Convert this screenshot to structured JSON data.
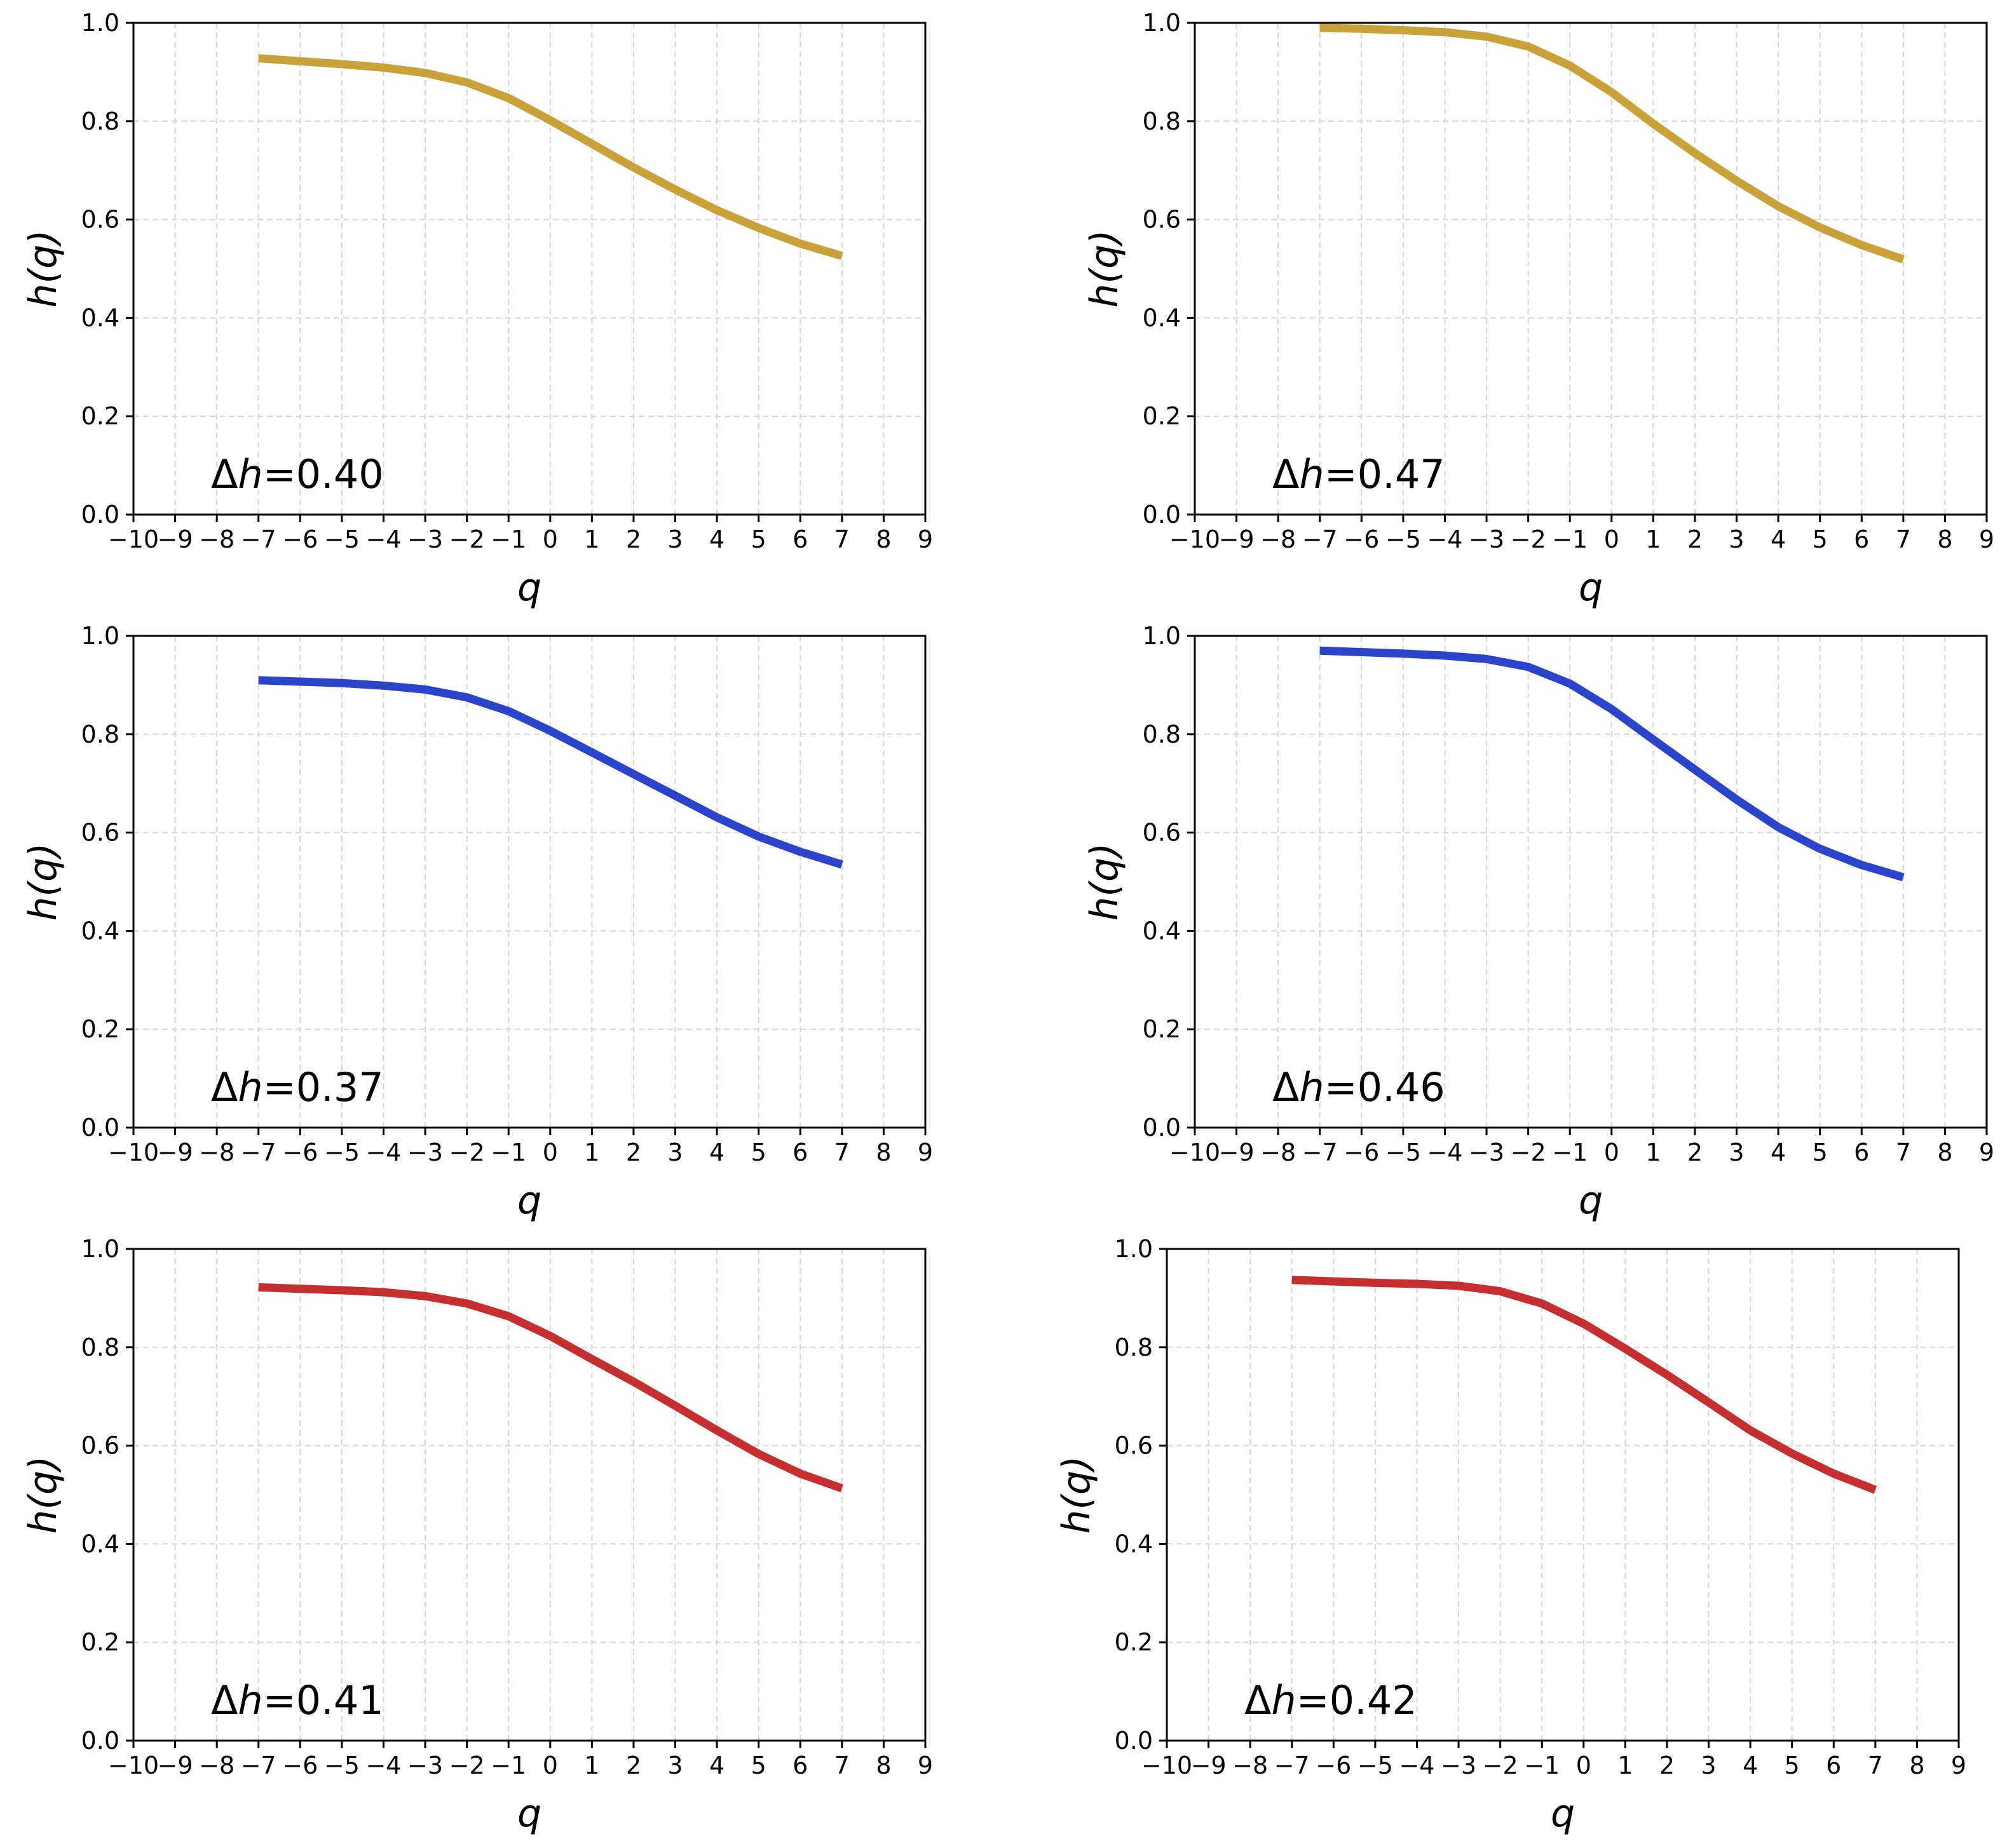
{
  "chart_data": [
    {
      "type": "line",
      "xlabel": "q",
      "ylabel": "h(q)",
      "xlim": [
        -10,
        9
      ],
      "ylim": [
        0,
        1
      ],
      "xticks": [
        -10,
        -9,
        -8,
        -7,
        -6,
        -5,
        -4,
        -3,
        -2,
        -1,
        0,
        1,
        2,
        3,
        4,
        5,
        6,
        7,
        8,
        9
      ],
      "yticks": [
        0.0,
        0.2,
        0.4,
        0.6,
        0.8,
        1.0
      ],
      "grid": true,
      "annotation": {
        "prefix": "Δ",
        "var": "h",
        "value": "=0.40"
      },
      "color": "#c9a23a",
      "series": [
        {
          "name": "h(q)",
          "x": [
            -7,
            -6,
            -5,
            -4,
            -3,
            -2,
            -1,
            0,
            1,
            2,
            3,
            4,
            5,
            6,
            7
          ],
          "y": [
            0.928,
            0.922,
            0.916,
            0.909,
            0.898,
            0.879,
            0.847,
            0.802,
            0.754,
            0.706,
            0.661,
            0.619,
            0.583,
            0.551,
            0.526
          ]
        }
      ]
    },
    {
      "type": "line",
      "xlabel": "q",
      "ylabel": "h(q)",
      "xlim": [
        -10,
        9
      ],
      "ylim": [
        0,
        1
      ],
      "xticks": [
        -10,
        -9,
        -8,
        -7,
        -6,
        -5,
        -4,
        -3,
        -2,
        -1,
        0,
        1,
        2,
        3,
        4,
        5,
        6,
        7,
        8,
        9
      ],
      "yticks": [
        0.0,
        0.2,
        0.4,
        0.6,
        0.8,
        1.0
      ],
      "grid": true,
      "annotation": {
        "prefix": "Δ",
        "var": "h",
        "value": "=0.47"
      },
      "color": "#c9a23a",
      "series": [
        {
          "name": "h(q)",
          "x": [
            -7,
            -6,
            -5,
            -4,
            -3,
            -2,
            -1,
            0,
            1,
            2,
            3,
            4,
            5,
            6,
            7
          ],
          "y": [
            0.99,
            0.988,
            0.985,
            0.981,
            0.972,
            0.952,
            0.913,
            0.859,
            0.795,
            0.735,
            0.679,
            0.627,
            0.584,
            0.548,
            0.519
          ]
        }
      ]
    },
    {
      "type": "line",
      "xlabel": "q",
      "ylabel": "h(q)",
      "xlim": [
        -10,
        9
      ],
      "ylim": [
        0,
        1
      ],
      "xticks": [
        -10,
        -9,
        -8,
        -7,
        -6,
        -5,
        -4,
        -3,
        -2,
        -1,
        0,
        1,
        2,
        3,
        4,
        5,
        6,
        7,
        8,
        9
      ],
      "yticks": [
        0.0,
        0.2,
        0.4,
        0.6,
        0.8,
        1.0
      ],
      "grid": true,
      "annotation": {
        "prefix": "Δ",
        "var": "h",
        "value": "=0.37"
      },
      "color": "#2b44cc",
      "series": [
        {
          "name": "h(q)",
          "x": [
            -7,
            -6,
            -5,
            -4,
            -3,
            -2,
            -1,
            0,
            1,
            2,
            3,
            4,
            5,
            6,
            7
          ],
          "y": [
            0.91,
            0.907,
            0.904,
            0.899,
            0.891,
            0.875,
            0.847,
            0.807,
            0.763,
            0.719,
            0.675,
            0.631,
            0.592,
            0.561,
            0.535
          ]
        }
      ]
    },
    {
      "type": "line",
      "xlabel": "q",
      "ylabel": "h(q)",
      "xlim": [
        -10,
        9
      ],
      "ylim": [
        0,
        1
      ],
      "xticks": [
        -10,
        -9,
        -8,
        -7,
        -6,
        -5,
        -4,
        -3,
        -2,
        -1,
        0,
        1,
        2,
        3,
        4,
        5,
        6,
        7,
        8,
        9
      ],
      "yticks": [
        0.0,
        0.2,
        0.4,
        0.6,
        0.8,
        1.0
      ],
      "grid": true,
      "annotation": {
        "prefix": "Δ",
        "var": "h",
        "value": "=0.46"
      },
      "color": "#2b44cc",
      "series": [
        {
          "name": "h(q)",
          "x": [
            -7,
            -6,
            -5,
            -4,
            -3,
            -2,
            -1,
            0,
            1,
            2,
            3,
            4,
            5,
            6,
            7
          ],
          "y": [
            0.97,
            0.967,
            0.964,
            0.96,
            0.953,
            0.937,
            0.903,
            0.851,
            0.789,
            0.728,
            0.667,
            0.611,
            0.567,
            0.534,
            0.509
          ]
        }
      ]
    },
    {
      "type": "line",
      "xlabel": "q",
      "ylabel": "h(q)",
      "xlim": [
        -10,
        9
      ],
      "ylim": [
        0,
        1
      ],
      "xticks": [
        -10,
        -9,
        -8,
        -7,
        -6,
        -5,
        -4,
        -3,
        -2,
        -1,
        0,
        1,
        2,
        3,
        4,
        5,
        6,
        7,
        8,
        9
      ],
      "yticks": [
        0.0,
        0.2,
        0.4,
        0.6,
        0.8,
        1.0
      ],
      "grid": true,
      "annotation": {
        "prefix": "Δ",
        "var": "h",
        "value": "=0.41"
      },
      "color": "#c62f2f",
      "series": [
        {
          "name": "h(q)",
          "x": [
            -7,
            -6,
            -5,
            -4,
            -3,
            -2,
            -1,
            0,
            1,
            2,
            3,
            4,
            5,
            6,
            7
          ],
          "y": [
            0.922,
            0.919,
            0.916,
            0.912,
            0.904,
            0.889,
            0.863,
            0.823,
            0.776,
            0.73,
            0.681,
            0.631,
            0.583,
            0.543,
            0.513
          ]
        }
      ]
    },
    {
      "type": "line",
      "xlabel": "q",
      "ylabel": "h(q)",
      "xlim": [
        -10,
        9
      ],
      "ylim": [
        0,
        1
      ],
      "xticks": [
        -10,
        -9,
        -8,
        -7,
        -6,
        -5,
        -4,
        -3,
        -2,
        -1,
        0,
        1,
        2,
        3,
        4,
        5,
        6,
        7,
        8,
        9
      ],
      "yticks": [
        0.0,
        0.2,
        0.4,
        0.6,
        0.8,
        1.0
      ],
      "grid": true,
      "annotation": {
        "prefix": "Δ",
        "var": "h",
        "value": "=0.42"
      },
      "color": "#c62f2f",
      "series": [
        {
          "name": "h(q)",
          "x": [
            -7,
            -6,
            -5,
            -4,
            -3,
            -2,
            -1,
            0,
            1,
            2,
            3,
            4,
            5,
            6,
            7
          ],
          "y": [
            0.937,
            0.934,
            0.931,
            0.929,
            0.925,
            0.914,
            0.889,
            0.848,
            0.797,
            0.744,
            0.688,
            0.631,
            0.584,
            0.543,
            0.51
          ]
        }
      ]
    }
  ]
}
